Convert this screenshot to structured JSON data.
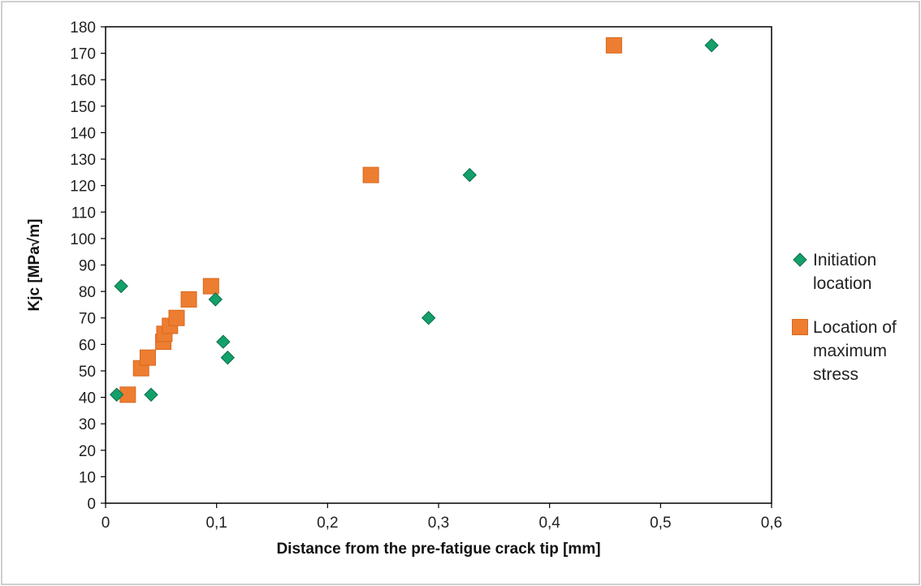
{
  "chart_data": {
    "type": "scatter",
    "title": "",
    "xlabel": "Distance from the pre-fatigue crack tip [mm]",
    "ylabel": "Kjc [MPa√m]",
    "xlim": [
      0,
      0.6
    ],
    "ylim": [
      0,
      180
    ],
    "x_ticks": [
      0,
      0.1,
      0.2,
      0.3,
      0.4,
      0.5,
      0.6
    ],
    "x_tick_labels": [
      "0",
      "0,1",
      "0,2",
      "0,3",
      "0,4",
      "0,5",
      "0,6"
    ],
    "y_ticks": [
      0,
      10,
      20,
      30,
      40,
      50,
      60,
      70,
      80,
      90,
      100,
      110,
      120,
      130,
      140,
      150,
      160,
      170,
      180
    ],
    "y_tick_labels": [
      "0",
      "10",
      "20",
      "30",
      "40",
      "50",
      "60",
      "70",
      "80",
      "90",
      "100",
      "110",
      "120",
      "130",
      "140",
      "150",
      "160",
      "170",
      "180"
    ],
    "grid": false,
    "legend_position": "right",
    "series": [
      {
        "name": "Initiation location",
        "legend_lines": [
          "Initiation",
          "location"
        ],
        "marker": "diamond",
        "color": "#13a06a",
        "stroke": "#0b6e47",
        "points": [
          {
            "x": 0.01,
            "y": 41
          },
          {
            "x": 0.014,
            "y": 82
          },
          {
            "x": 0.041,
            "y": 41
          },
          {
            "x": 0.099,
            "y": 77
          },
          {
            "x": 0.106,
            "y": 61
          },
          {
            "x": 0.11,
            "y": 55
          },
          {
            "x": 0.291,
            "y": 70
          },
          {
            "x": 0.328,
            "y": 124
          },
          {
            "x": 0.546,
            "y": 173
          }
        ]
      },
      {
        "name": "Location of maximum stress",
        "legend_lines": [
          "Location of",
          "maximum",
          "stress"
        ],
        "marker": "square",
        "color": "#ed7d31",
        "stroke": "#d8691e",
        "points": [
          {
            "x": 0.02,
            "y": 41
          },
          {
            "x": 0.032,
            "y": 51
          },
          {
            "x": 0.038,
            "y": 55
          },
          {
            "x": 0.052,
            "y": 61
          },
          {
            "x": 0.053,
            "y": 64
          },
          {
            "x": 0.058,
            "y": 67
          },
          {
            "x": 0.064,
            "y": 70
          },
          {
            "x": 0.075,
            "y": 77
          },
          {
            "x": 0.095,
            "y": 82
          },
          {
            "x": 0.239,
            "y": 124
          },
          {
            "x": 0.458,
            "y": 173
          }
        ]
      }
    ]
  }
}
